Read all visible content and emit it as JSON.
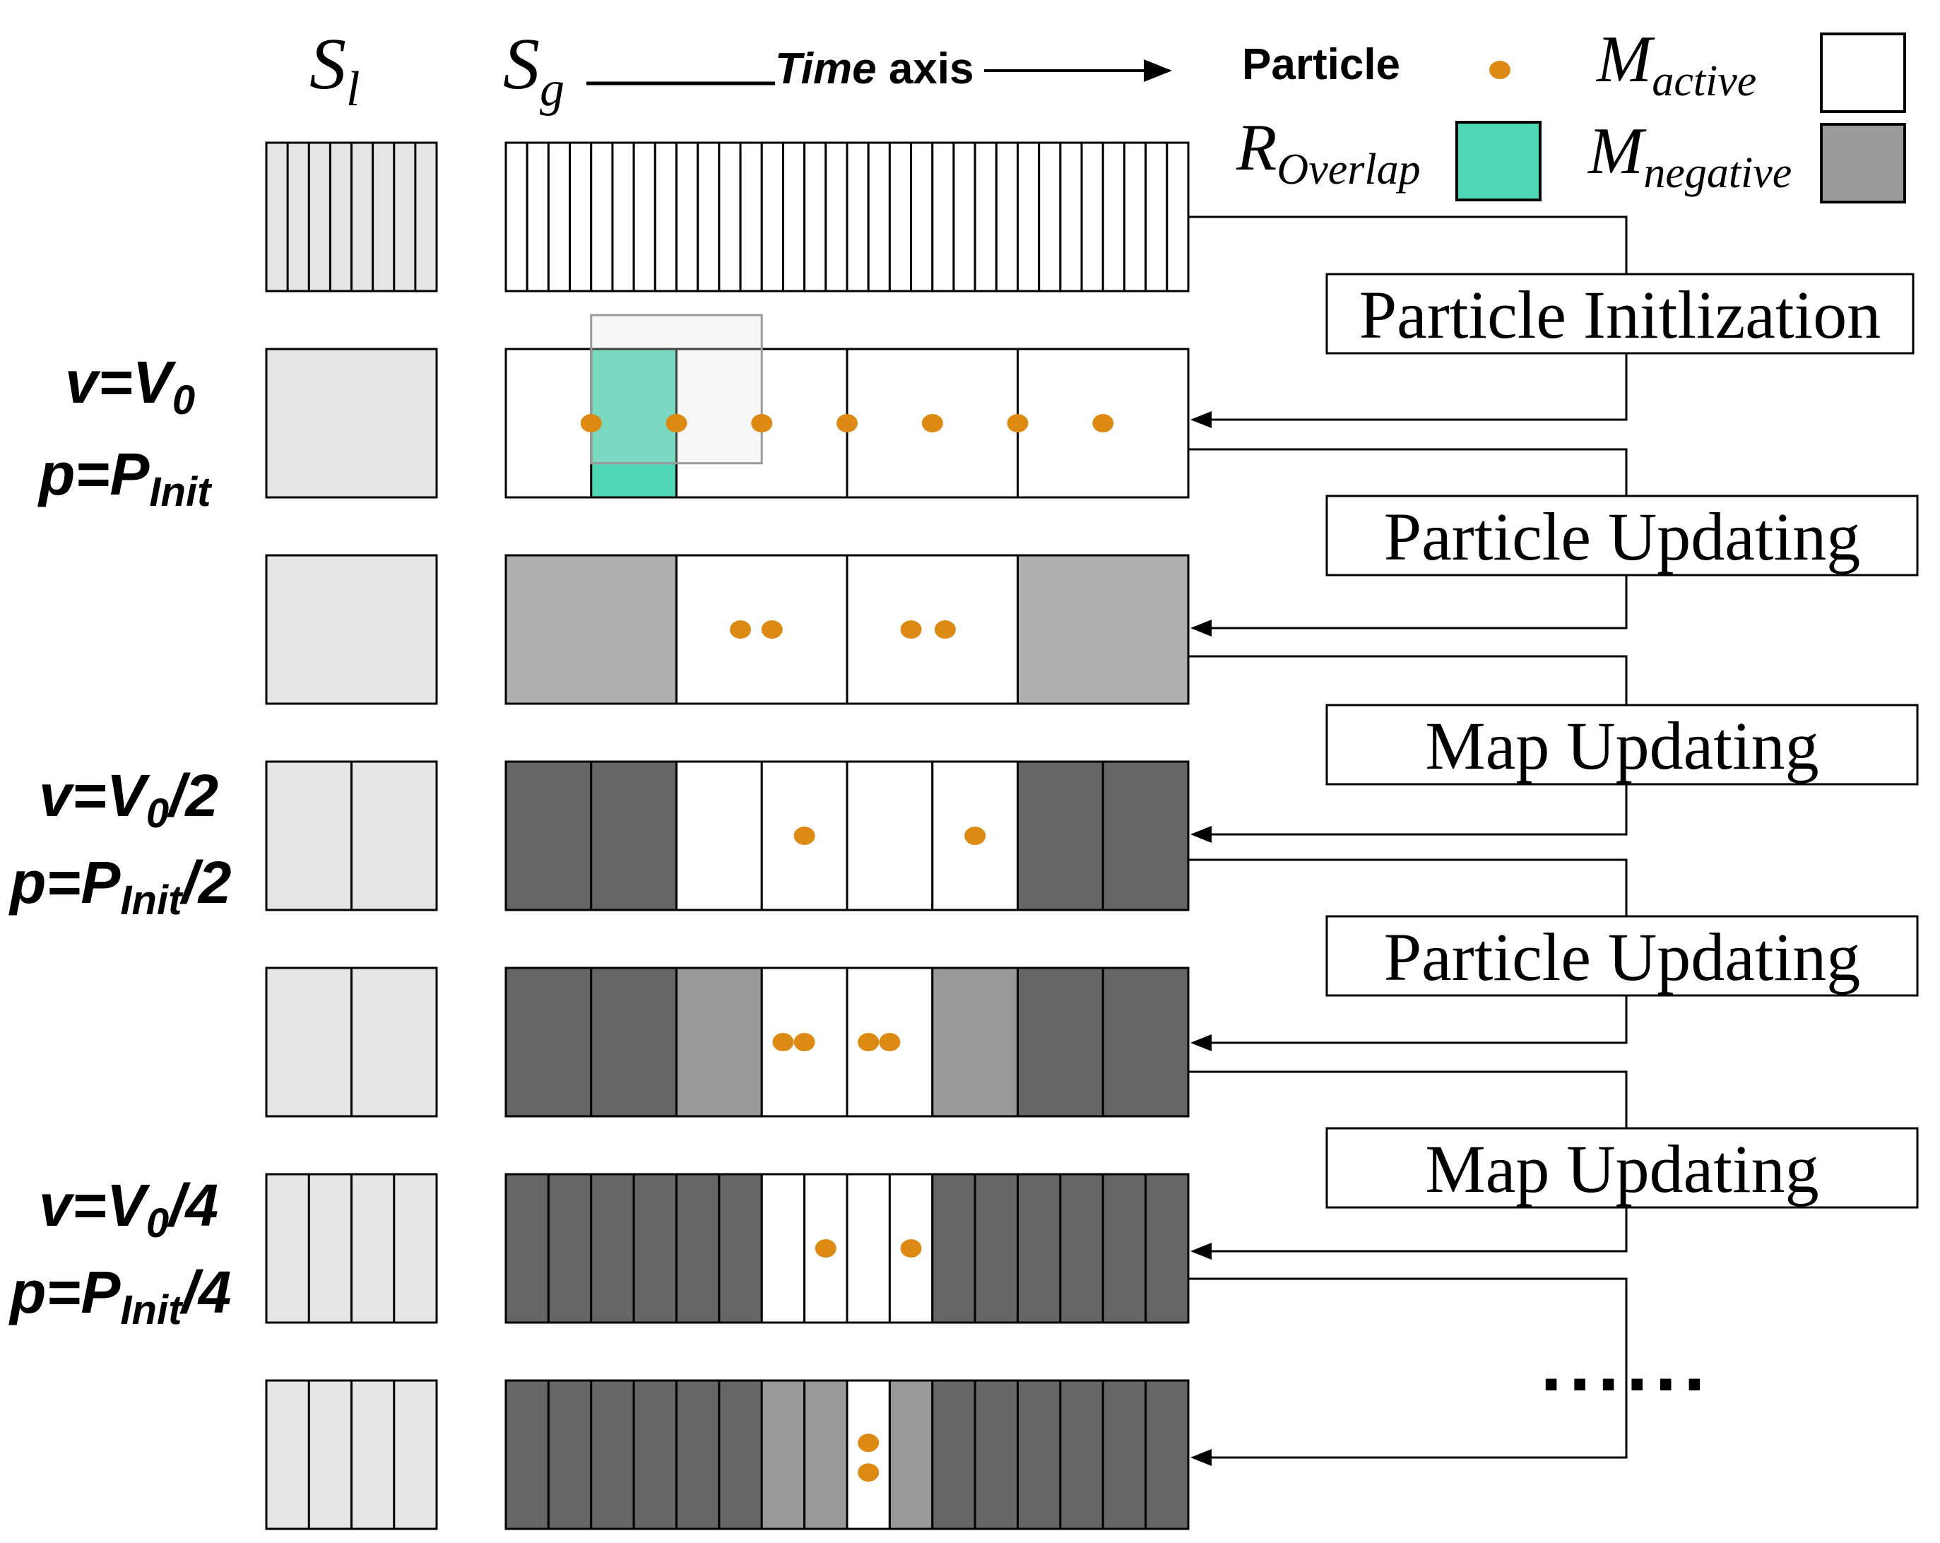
{
  "headers": {
    "sl_main": "S",
    "sl_sub": "l",
    "sg_main": "S",
    "sg_sub": "g",
    "time_axis_italic": "Time",
    "time_axis_bold": " axis"
  },
  "legend": {
    "particle": "Particle",
    "active_main": "M",
    "active_sub": "active",
    "overlap_main": "R",
    "overlap_sub": "Overlap",
    "negative_main": "M",
    "negative_sub": "negative"
  },
  "params": [
    {
      "v_main": "v=V",
      "v_sub": "0",
      "v_tail": "",
      "p_main": "p=P",
      "p_sub": "Init",
      "p_tail": ""
    },
    {
      "v_main": "v=V",
      "v_sub": "0",
      "v_tail": "/2",
      "p_main": "p=P",
      "p_sub": "Init",
      "p_tail": "/2"
    },
    {
      "v_main": "v=V",
      "v_sub": "0",
      "v_tail": "/4",
      "p_main": "p=P",
      "p_sub": "Init",
      "p_tail": "/4"
    }
  ],
  "steps": [
    "Particle Initlization",
    "Particle Updating",
    "Map Updating",
    "Particle Updating",
    "Map Updating"
  ],
  "ellipsis": "......",
  "colors": {
    "overlap": "#4fd6b4",
    "negative_dark": "#666666",
    "negative_mid": "#999999",
    "negative_light": "#b0b0b0",
    "legend_negative": "#9a9a9a",
    "sl_fill": "#e5e5e5",
    "particle": "#dd8a14",
    "active": "#ffffff"
  }
}
